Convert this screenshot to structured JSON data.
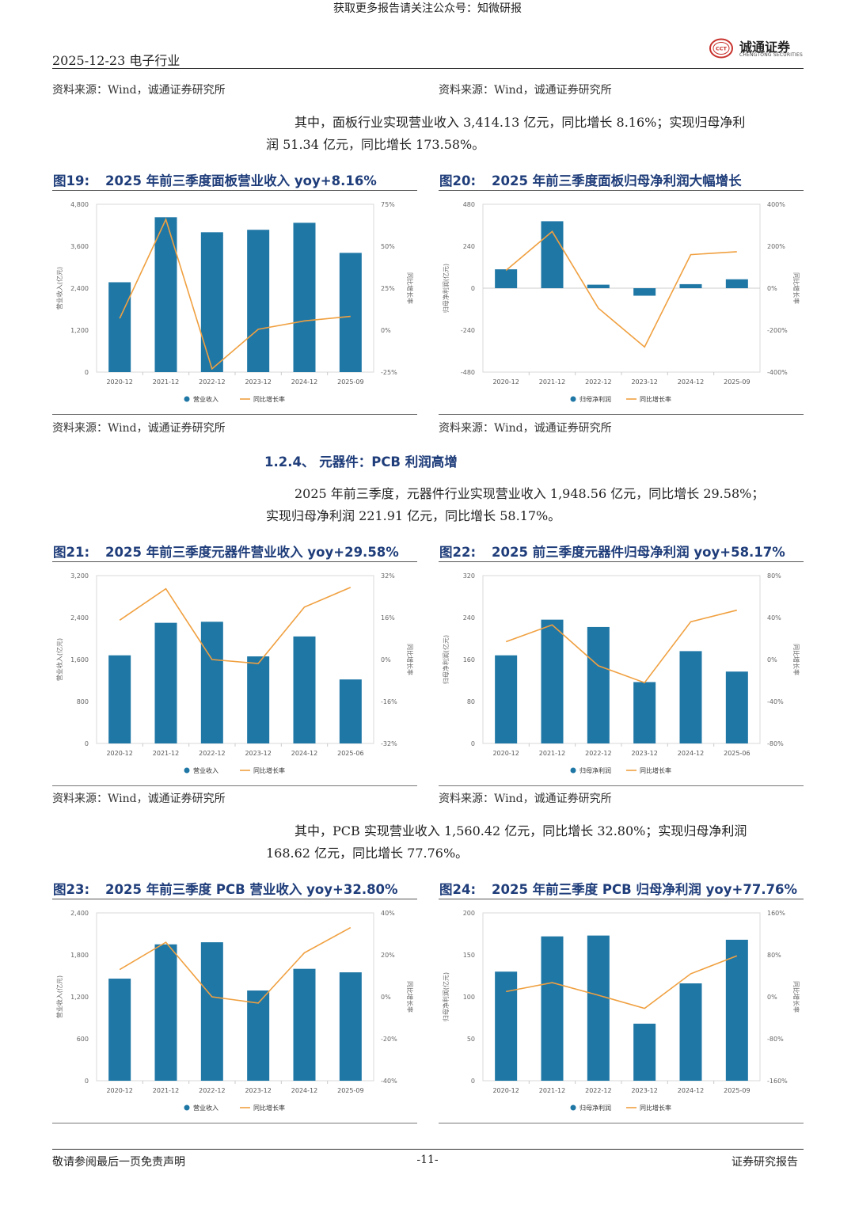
{
  "banner": "获取更多报告请关注公众号：知微研报",
  "header": {
    "date_sector": "2025-12-23  电子行业",
    "logo_cn": "诚通证券",
    "logo_en": "CHENGTONG SECURITIES",
    "logo_seal": "CCT"
  },
  "source_text": "资料来源：Wind，诚通证券研究所",
  "paragraphs": [
    {
      "line1": "其中，面板行业实现营业收入 3,414.13 亿元，同比增长 8.16%；实现归母净利",
      "line2": "润 51.34 亿元，同比增长 173.58%。"
    },
    {
      "line1": "2025 年前三季度，元器件行业实现营业收入 1,948.56 亿元，同比增长 29.58%；",
      "line2": "实现归母净利润 221.91 亿元，同比增长 58.17%。"
    },
    {
      "line1": "其中，PCB 实现营业收入 1,560.42 亿元，同比增长 32.80%；实现归母净利润",
      "line2": "168.62 亿元，同比增长 77.76%。"
    }
  ],
  "section_heading": "1.2.4、 元器件：PCB 利润高增",
  "figures": [
    {
      "num": "图19:",
      "title": "2025 年前三季度面板营业收入 yoy+8.16%"
    },
    {
      "num": "图20:",
      "title": "2025 年前三季度面板归母净利润大幅增长"
    },
    {
      "num": "图21:",
      "title": "2025 年前三季度元器件营业收入 yoy+29.58%"
    },
    {
      "num": "图22:",
      "title": "2025 前三季度元器件归母净利润 yoy+58.17%"
    },
    {
      "num": "图23:",
      "title": "2025 年前三季度 PCB 营业收入 yoy+32.80%"
    },
    {
      "num": "图24:",
      "title": "2025 年前三季度 PCB 归母净利润 yoy+77.76%"
    }
  ],
  "colors": {
    "bar": "#1f77a6",
    "line": "#f0a040",
    "title": "#1f3d7a"
  },
  "chart_data": [
    {
      "type": "bar",
      "title": "2025 年前三季度面板营业收入 yoy+8.16%",
      "categories": [
        "2020-12",
        "2021-12",
        "2022-12",
        "2023-12",
        "2024-12",
        "2025-09"
      ],
      "series": [
        {
          "name": "营业收入",
          "type": "bar",
          "axis": "left",
          "values": [
            2570,
            4430,
            4000,
            4070,
            4270,
            3410
          ]
        },
        {
          "name": "同比增长率",
          "type": "line",
          "axis": "right",
          "values": [
            7,
            66,
            -23,
            0.5,
            5.5,
            8.2
          ]
        }
      ],
      "ylabel": "营业收入(亿元)",
      "y2label": "同比增长率",
      "ylim": [
        0,
        4800
      ],
      "yticks": [
        0,
        1200,
        2400,
        3600,
        4800
      ],
      "ytick_labels": [
        "0",
        "1,200",
        "2,400",
        "3,600",
        "4,800"
      ],
      "y2lim": [
        -25,
        75
      ],
      "y2ticks": [
        -25,
        0,
        25,
        50,
        75
      ],
      "y2tick_labels": [
        "-25%",
        "0%",
        "25%",
        "50%",
        "75%"
      ]
    },
    {
      "type": "bar",
      "title": "2025 年前三季度面板归母净利润大幅增长",
      "categories": [
        "2020-12",
        "2021-12",
        "2022-12",
        "2023-12",
        "2024-12",
        "2025-09"
      ],
      "series": [
        {
          "name": "归母净利润",
          "type": "bar",
          "axis": "left",
          "values": [
            108,
            383,
            20,
            -43,
            23,
            51
          ]
        },
        {
          "name": "同比增长率",
          "type": "line",
          "axis": "right",
          "values": [
            85,
            270,
            -95,
            -280,
            160,
            174
          ]
        }
      ],
      "ylabel": "归母净利润(亿元)",
      "y2label": "同比增长率",
      "ylim": [
        -480,
        480
      ],
      "yticks": [
        -480,
        -240,
        0,
        240,
        480
      ],
      "ytick_labels": [
        "-480",
        "-240",
        "0",
        "240",
        "480"
      ],
      "y2lim": [
        -400,
        400
      ],
      "y2ticks": [
        -400,
        -200,
        0,
        200,
        400
      ],
      "y2tick_labels": [
        "-400%",
        "-200%",
        "0%",
        "200%",
        "400%"
      ]
    },
    {
      "type": "bar",
      "title": "2025 年前三季度元器件营业收入 yoy+29.58%",
      "categories": [
        "2020-12",
        "2021-12",
        "2022-12",
        "2023-12",
        "2024-12",
        "2025-06"
      ],
      "series": [
        {
          "name": "营业收入",
          "type": "bar",
          "axis": "left",
          "values": [
            1680,
            2300,
            2320,
            1660,
            2040,
            1220
          ]
        },
        {
          "name": "同比增长率",
          "type": "line",
          "axis": "right",
          "values": [
            15,
            27,
            0,
            -1.5,
            20,
            27.5
          ]
        }
      ],
      "ylabel": "营业收入(亿元)",
      "y2label": "同比增长率",
      "ylim": [
        0,
        3200
      ],
      "yticks": [
        0,
        800,
        1600,
        2400,
        3200
      ],
      "ytick_labels": [
        "0",
        "800",
        "1,600",
        "2,400",
        "3,200"
      ],
      "y2lim": [
        -32,
        32
      ],
      "y2ticks": [
        -32,
        -16,
        0,
        16,
        32
      ],
      "y2tick_labels": [
        "-32%",
        "-16%",
        "0%",
        "16%",
        "32%"
      ]
    },
    {
      "type": "bar",
      "title": "2025 前三季度元器件归母净利润 yoy+58.17%",
      "categories": [
        "2020-12",
        "2021-12",
        "2022-12",
        "2023-12",
        "2024-12",
        "2025-06"
      ],
      "series": [
        {
          "name": "归母净利润",
          "type": "bar",
          "axis": "left",
          "values": [
            168,
            236,
            222,
            117,
            176,
            137
          ]
        },
        {
          "name": "同比增长率",
          "type": "line",
          "axis": "right",
          "values": [
            17,
            33,
            -6,
            -22,
            36,
            47
          ]
        }
      ],
      "ylabel": "归母净利润(亿元)",
      "y2label": "同比增长率",
      "ylim": [
        0,
        320
      ],
      "yticks": [
        0,
        80,
        160,
        240,
        320
      ],
      "ytick_labels": [
        "0",
        "80",
        "160",
        "240",
        "320"
      ],
      "y2lim": [
        -80,
        80
      ],
      "y2ticks": [
        -80,
        -40,
        0,
        40,
        80
      ],
      "y2tick_labels": [
        "-80%",
        "-40%",
        "0%",
        "40%",
        "80%"
      ]
    },
    {
      "type": "bar",
      "title": "2025 年前三季度 PCB 营业收入 yoy+32.80%",
      "categories": [
        "2020-12",
        "2021-12",
        "2022-12",
        "2023-12",
        "2024-12",
        "2025-09"
      ],
      "series": [
        {
          "name": "营业收入",
          "type": "bar",
          "axis": "left",
          "values": [
            1460,
            1950,
            1980,
            1290,
            1600,
            1550
          ]
        },
        {
          "name": "同比增长率",
          "type": "line",
          "axis": "right",
          "values": [
            13,
            26,
            0,
            -3,
            21,
            33
          ]
        }
      ],
      "ylabel": "营业收入(亿元)",
      "y2label": "同比增长率",
      "ylim": [
        0,
        2400
      ],
      "yticks": [
        0,
        600,
        1200,
        1800,
        2400
      ],
      "ytick_labels": [
        "0",
        "600",
        "1,200",
        "1,800",
        "2,400"
      ],
      "y2lim": [
        -40,
        40
      ],
      "y2ticks": [
        -40,
        -20,
        0,
        20,
        40
      ],
      "y2tick_labels": [
        "-40%",
        "-20%",
        "0%",
        "20%",
        "40%"
      ]
    },
    {
      "type": "bar",
      "title": "2025 年前三季度 PCB 归母净利润 yoy+77.76%",
      "categories": [
        "2020-12",
        "2021-12",
        "2022-12",
        "2023-12",
        "2024-12",
        "2025-09"
      ],
      "series": [
        {
          "name": "归母净利润",
          "type": "bar",
          "axis": "left",
          "values": [
            130,
            172,
            173,
            68,
            116,
            168
          ]
        },
        {
          "name": "同比增长率",
          "type": "line",
          "axis": "right",
          "values": [
            10,
            27,
            3,
            -22,
            44,
            78
          ]
        }
      ],
      "ylabel": "归母净利润(亿元)",
      "y2label": "同比增长率",
      "ylim": [
        0,
        200
      ],
      "yticks": [
        0,
        50,
        100,
        150,
        200
      ],
      "ytick_labels": [
        "0",
        "50",
        "100",
        "150",
        "200"
      ],
      "y2lim": [
        -160,
        160
      ],
      "y2ticks": [
        -160,
        -80,
        0,
        80,
        160
      ],
      "y2tick_labels": [
        "-160%",
        "-80%",
        "0%",
        "80%",
        "160%"
      ]
    }
  ],
  "footer": {
    "left": "敬请参阅最后一页免责声明",
    "center": "-11-",
    "right": "证券研究报告"
  }
}
